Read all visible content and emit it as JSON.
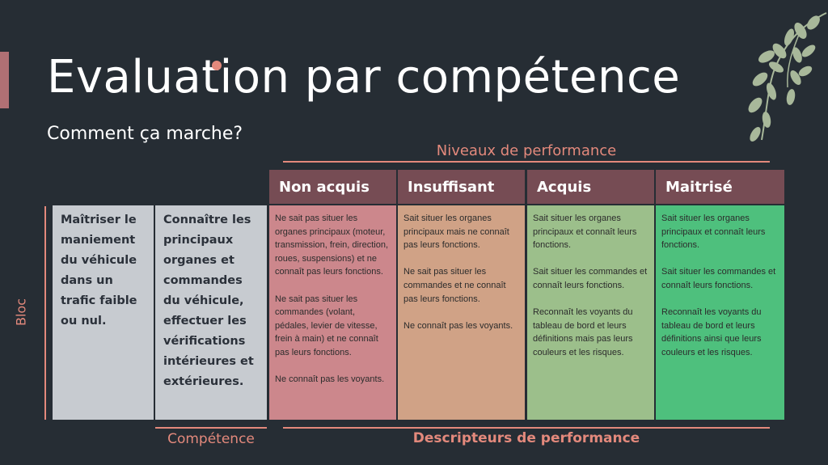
{
  "slide": {
    "title": "Evaluation par compétence",
    "subtitle": "Comment ça marche?"
  },
  "labels": {
    "niveaux": "Niveaux de performance",
    "bloc": "Bloc",
    "competence": "Compétence",
    "descripteurs": "Descripteurs de performance"
  },
  "levels": [
    {
      "name": "Non acquis"
    },
    {
      "name": "Insuffisant"
    },
    {
      "name": "Acquis"
    },
    {
      "name": "Maitrisé"
    }
  ],
  "bloc_text": "Maîtriser le maniement du véhicule dans un trafic faible ou nul.",
  "competence_text": "Connaître les principaux organes et commandes du véhicule, effectuer les vérifications intérieures et extérieures.",
  "descriptors": [
    "Ne sait pas situer les organes principaux (moteur, transmission, frein, direction, roues, suspensions) et ne connaît pas leurs fonctions.\n\nNe sait pas situer les commandes (volant, pédales, levier de vitesse, frein à main) et ne connaît pas leurs fonctions.\n\nNe connaît pas les voyants.",
    "Sait situer les organes principaux mais ne connaît pas leurs fonctions.\n\nNe sait pas situer les commandes et ne connaît pas leurs fonctions.\n\nNe connaît pas les voyants.",
    "Sait situer les organes principaux et connaît leurs fonctions.\n\nSait situer les commandes et connaît leurs fonctions.\n\nReconnaît les voyants du tableau de bord et leurs définitions mais pas leurs couleurs et les risques.",
    "Sait situer les organes principaux et connaît leurs fonctions.\n\nSait situer les commandes et connaît leurs fonctions.\n\nReconnaît les voyants du tableau de bord et leurs définitions ainsi que leurs couleurs et les risques."
  ],
  "colors": {
    "background": "#262d34",
    "accent": "#e3897c",
    "header": "#764c54",
    "non_acquis": "#cc878c",
    "insuffisant": "#d0a286",
    "acquis": "#9cbf8b",
    "maitrise": "#4ec07d",
    "grey_cell": "#c7cbd0"
  },
  "icons": {
    "decoration": "leaf-branch-icon"
  }
}
